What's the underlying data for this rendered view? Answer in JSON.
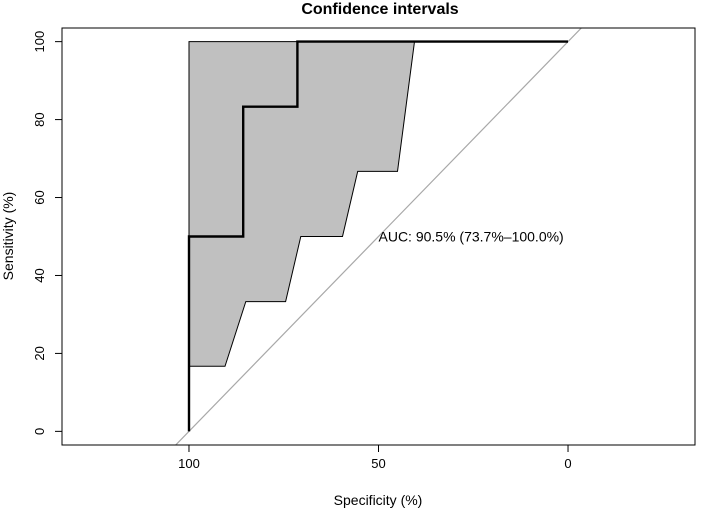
{
  "chart_data": {
    "type": "line",
    "title": "Confidence intervals",
    "xlabel": "Specificity (%)",
    "ylabel": "Sensitivity (%)",
    "x_reversed": true,
    "xlim": [
      133.5,
      -33.5
    ],
    "ylim": [
      -3.5,
      103.5
    ],
    "xticks": [
      100,
      50,
      0
    ],
    "yticks": [
      0,
      20,
      40,
      60,
      80,
      100
    ],
    "annotation": "AUC: 90.5% (73.7%–100.0%)",
    "annotation_anchor": {
      "specificity": 50,
      "sensitivity": 50
    },
    "roc_curve": [
      [
        100,
        0
      ],
      [
        100,
        50
      ],
      [
        85.7,
        50
      ],
      [
        85.7,
        83.3
      ],
      [
        71.4,
        83.3
      ],
      [
        71.4,
        100
      ],
      [
        0,
        100
      ]
    ],
    "ci_upper": [
      [
        100,
        100
      ],
      [
        40.5,
        100
      ]
    ],
    "ci_lower": [
      [
        100,
        16.7
      ],
      [
        90.5,
        16.7
      ],
      [
        85,
        33.3
      ],
      [
        74.5,
        33.3
      ],
      [
        70.5,
        50
      ],
      [
        59.5,
        50
      ],
      [
        55.5,
        66.7
      ],
      [
        45,
        66.7
      ],
      [
        40.5,
        100
      ]
    ],
    "diagonal": [
      [
        104,
        -4
      ],
      [
        -4,
        104
      ]
    ],
    "colors": {
      "ci_fill": "#c0c0c0",
      "curve": "#000000",
      "diagonal": "#a8a8a8"
    }
  }
}
